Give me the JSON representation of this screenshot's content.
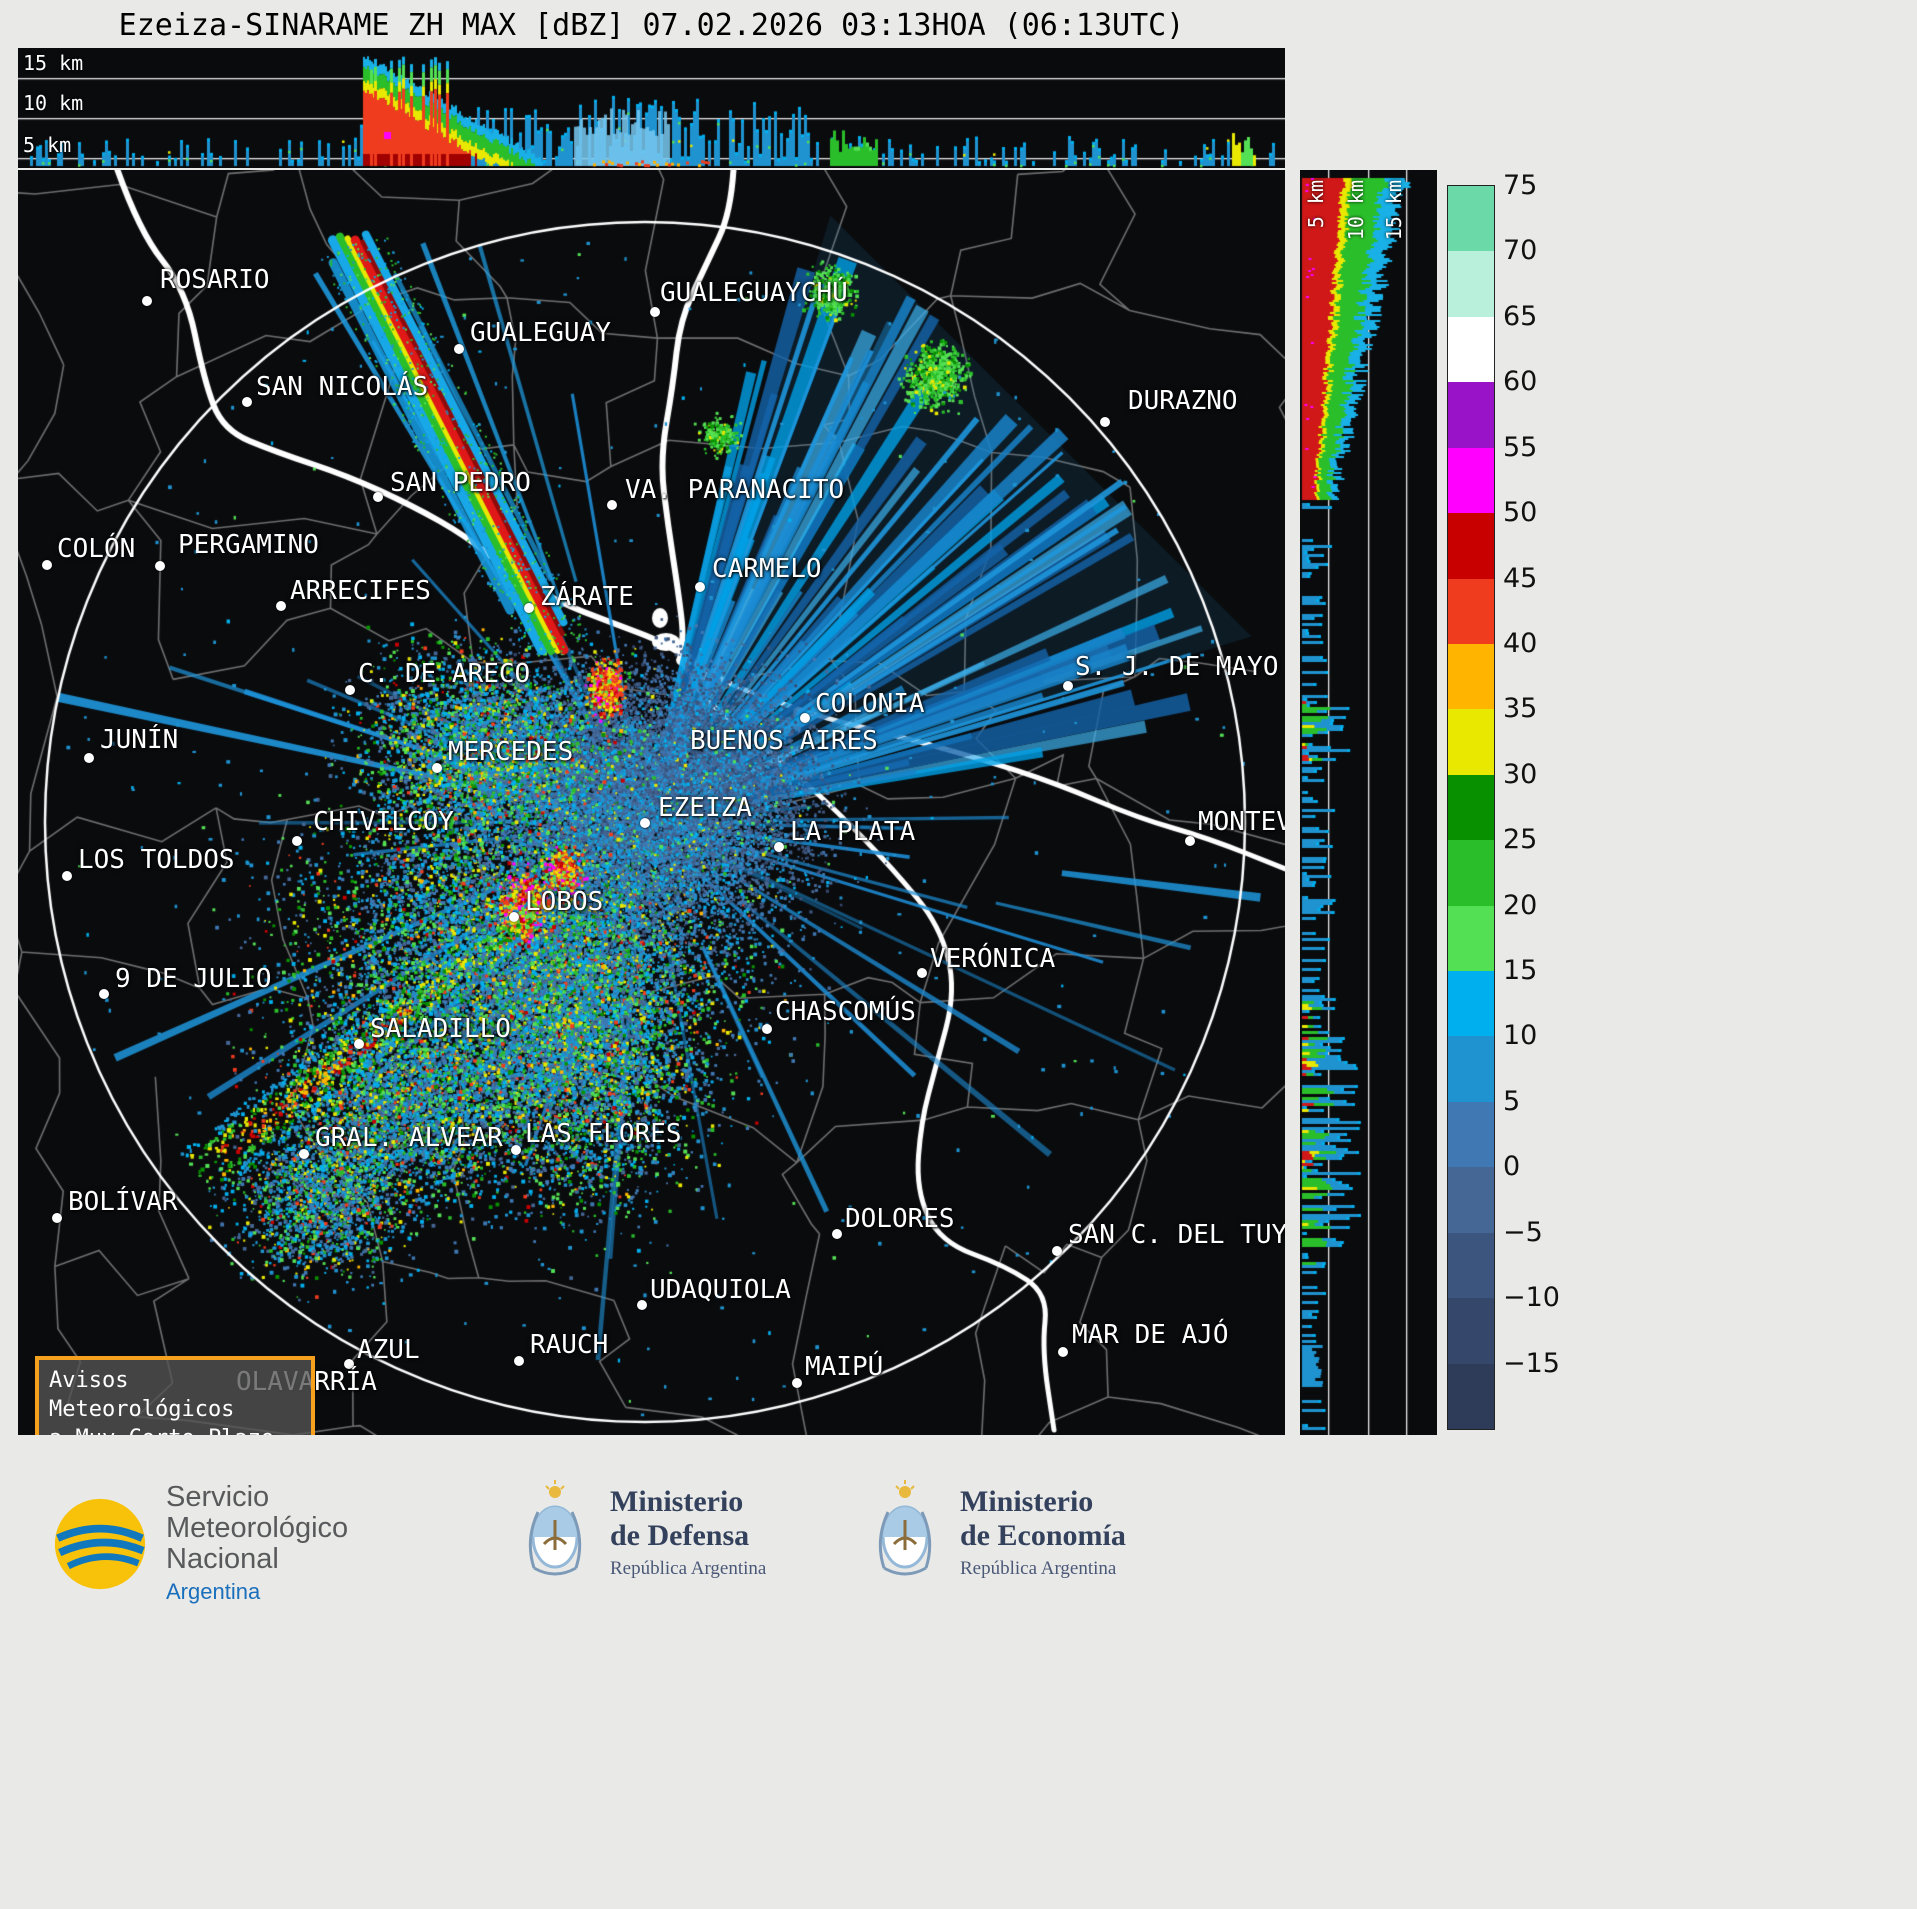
{
  "title": "Ezeiza-SINARAME ZH MAX [dBZ] 07.02.2026 03:13HOA (06:13UTC)",
  "top_profile": {
    "labels": [
      "15 km",
      "10 km",
      "5 km"
    ]
  },
  "right_profile": {
    "labels": [
      "5 km",
      "10 km",
      "15 km"
    ]
  },
  "colorbar": {
    "units": "dBZ",
    "min": -20,
    "max": 75,
    "ticks": [
      75,
      70,
      65,
      60,
      55,
      50,
      45,
      40,
      35,
      30,
      25,
      20,
      15,
      10,
      5,
      0,
      -5,
      -10,
      -15
    ],
    "segments": [
      "#2e3c59",
      "#35486c",
      "#3c557f",
      "#456795",
      "#3f78b3",
      "#1f93d0",
      "#00b0ee",
      "#54e054",
      "#2abe2a",
      "#089000",
      "#e8e800",
      "#ffb400",
      "#f03c1e",
      "#c80000",
      "#ff00ff",
      "#9914c8",
      "#ffffff",
      "#b8f0dc",
      "#6cd9a8"
    ]
  },
  "map": {
    "cities": [
      {
        "name": "ROSARIO",
        "label": [
          142,
          95
        ],
        "dot": [
          129,
          131
        ]
      },
      {
        "name": "GUALEGUAYCHÚ",
        "label": [
          642,
          108
        ],
        "dot": [
          637,
          142
        ]
      },
      {
        "name": "GUALEGUAY",
        "label": [
          452,
          148
        ],
        "dot": [
          441,
          179
        ]
      },
      {
        "name": "SAN NICOLÁS",
        "label": [
          238,
          202
        ],
        "dot": [
          229,
          232
        ]
      },
      {
        "name": "DURAZNO",
        "label": [
          1110,
          216
        ],
        "dot": [
          1087,
          252
        ]
      },
      {
        "name": "SAN PEDRO",
        "label": [
          372,
          298
        ],
        "dot": [
          360,
          327
        ]
      },
      {
        "name": "VA. PARANACITO",
        "label": [
          607,
          305
        ],
        "dot": [
          594,
          335
        ]
      },
      {
        "name": "COLÓN",
        "label": [
          39,
          364
        ],
        "dot": [
          29,
          395
        ]
      },
      {
        "name": "PERGAMINO",
        "label": [
          160,
          360
        ],
        "dot": [
          142,
          396
        ]
      },
      {
        "name": "CARMELO",
        "label": [
          694,
          384
        ],
        "dot": [
          682,
          417
        ]
      },
      {
        "name": "ARRECIFES",
        "label": [
          272,
          406
        ],
        "dot": [
          263,
          436
        ]
      },
      {
        "name": "ZÁRATE",
        "label": [
          522,
          412
        ],
        "dot": [
          511,
          438
        ]
      },
      {
        "name": "C. DE ARECO",
        "label": [
          340,
          489
        ],
        "dot": [
          332,
          520
        ]
      },
      {
        "name": "S. J. DE MAYO",
        "label": [
          1057,
          482
        ],
        "dot": [
          1050,
          516
        ]
      },
      {
        "name": "COLONIA",
        "label": [
          797,
          519
        ],
        "dot": [
          787,
          548
        ]
      },
      {
        "name": "JUNÍN",
        "label": [
          82,
          555
        ],
        "dot": [
          71,
          588
        ]
      },
      {
        "name": "BUENOS AIRES",
        "label": [
          672,
          556
        ],
        "dot": null
      },
      {
        "name": "MERCEDES",
        "label": [
          430,
          567
        ],
        "dot": [
          419,
          598
        ]
      },
      {
        "name": "EZEIZA",
        "label": [
          640,
          623
        ],
        "dot": [
          627,
          653
        ]
      },
      {
        "name": "CHIVILCOY",
        "label": [
          295,
          637
        ],
        "dot": [
          279,
          671
        ]
      },
      {
        "name": "LA PLATA",
        "label": [
          772,
          647
        ],
        "dot": [
          761,
          677
        ]
      },
      {
        "name": "MONTEVIDEO",
        "label": [
          1180,
          637
        ],
        "dot": [
          1172,
          671
        ]
      },
      {
        "name": "LOS TOLDOS",
        "label": [
          60,
          675
        ],
        "dot": [
          49,
          706
        ]
      },
      {
        "name": "LOBOS",
        "label": [
          507,
          717
        ],
        "dot": [
          496,
          747
        ]
      },
      {
        "name": "VERÓNICA",
        "label": [
          912,
          774
        ],
        "dot": [
          904,
          803
        ]
      },
      {
        "name": "9 DE JULIO",
        "label": [
          97,
          794
        ],
        "dot": [
          86,
          824
        ]
      },
      {
        "name": "CHASCOMÚS",
        "label": [
          757,
          827
        ],
        "dot": [
          749,
          859
        ]
      },
      {
        "name": "SALADILLO",
        "label": [
          352,
          844
        ],
        "dot": [
          341,
          874
        ]
      },
      {
        "name": "GRAL. ALVEAR",
        "label": [
          297,
          953
        ],
        "dot": [
          286,
          984
        ]
      },
      {
        "name": "LAS FLORES",
        "label": [
          507,
          949
        ],
        "dot": [
          498,
          980
        ]
      },
      {
        "name": "BOLÍVAR",
        "label": [
          50,
          1017
        ],
        "dot": [
          39,
          1048
        ]
      },
      {
        "name": "DOLORES",
        "label": [
          827,
          1034
        ],
        "dot": [
          819,
          1064
        ]
      },
      {
        "name": "SAN C. DEL TUYÚ",
        "label": [
          1050,
          1050
        ],
        "dot": [
          1039,
          1081
        ]
      },
      {
        "name": "UDAQUIOLA",
        "label": [
          632,
          1105
        ],
        "dot": [
          624,
          1135
        ]
      },
      {
        "name": "MAR DE AJÓ",
        "label": [
          1054,
          1150
        ],
        "dot": [
          1045,
          1182
        ]
      },
      {
        "name": "AZUL",
        "label": [
          339,
          1165
        ],
        "dot": [
          331,
          1194
        ]
      },
      {
        "name": "RAUCH",
        "label": [
          512,
          1160
        ],
        "dot": [
          501,
          1191
        ]
      },
      {
        "name": "MAIPÚ",
        "label": [
          787,
          1182
        ],
        "dot": [
          779,
          1213
        ]
      },
      {
        "name": "OLAVARRÍA",
        "label": [
          218,
          1197
        ],
        "dot": null
      }
    ]
  },
  "warning": {
    "line1": "Avisos Meteorológicos",
    "line2": "a Muy Corto Plazo"
  },
  "footer": {
    "smn": {
      "line1": "Servicio",
      "line2": "Meteorológico",
      "line3": "Nacional",
      "country": "Argentina"
    },
    "defensa": {
      "line1": "Ministerio",
      "line2": "de Defensa",
      "sub": "República Argentina"
    },
    "economia": {
      "line1": "Ministerio",
      "line2": "de Economía",
      "sub": "República Argentina"
    }
  }
}
